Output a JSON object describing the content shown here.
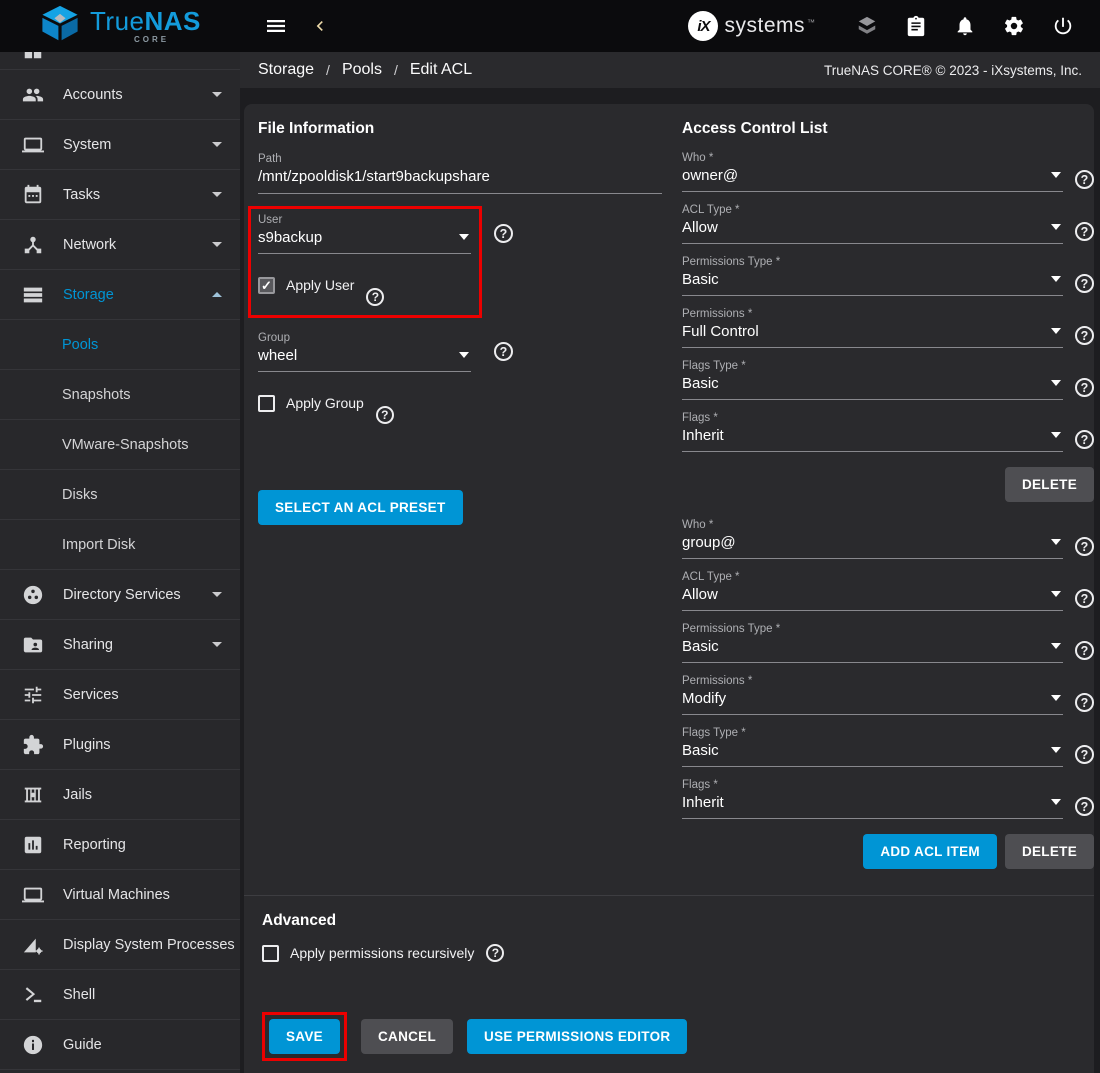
{
  "app": {
    "brand_true": "True",
    "brand_nas": "NAS",
    "brand_core": "CORE",
    "ix_mark": "iX",
    "ix_brand": "systems",
    "ix_tm": "™",
    "copyright": "TrueNAS CORE® © 2023 - iXsystems, Inc."
  },
  "header": {
    "left_icons": [
      "hamburger-icon",
      "collapse-sidenav-icon"
    ],
    "right_icons": [
      "truecommand-icon",
      "tasks-clipboard-icon",
      "notifications-bell-icon",
      "settings-gear-icon",
      "power-icon"
    ]
  },
  "breadcrumb": {
    "items": [
      "Storage",
      "Pools",
      "Edit ACL"
    ],
    "separator": "/"
  },
  "sidebar": [
    {
      "label": "",
      "icon": "dashboard-icon",
      "partial": true
    },
    {
      "label": "Accounts",
      "icon": "accounts-icon",
      "chevron": "down"
    },
    {
      "label": "System",
      "icon": "system-icon",
      "chevron": "down"
    },
    {
      "label": "Tasks",
      "icon": "tasks-icon",
      "chevron": "down"
    },
    {
      "label": "Network",
      "icon": "network-icon",
      "chevron": "down"
    },
    {
      "label": "Storage",
      "icon": "storage-icon",
      "chevron": "up",
      "active": true
    },
    {
      "label": "Pools",
      "sub": true,
      "active": true
    },
    {
      "label": "Snapshots",
      "sub": true
    },
    {
      "label": "VMware-Snapshots",
      "sub": true
    },
    {
      "label": "Disks",
      "sub": true
    },
    {
      "label": "Import Disk",
      "sub": true
    },
    {
      "label": "Directory Services",
      "icon": "directory-services-icon",
      "chevron": "down"
    },
    {
      "label": "Sharing",
      "icon": "sharing-icon",
      "chevron": "down"
    },
    {
      "label": "Services",
      "icon": "services-icon"
    },
    {
      "label": "Plugins",
      "icon": "plugins-icon"
    },
    {
      "label": "Jails",
      "icon": "jails-icon"
    },
    {
      "label": "Reporting",
      "icon": "reporting-icon"
    },
    {
      "label": "Virtual Machines",
      "icon": "vm-icon"
    },
    {
      "label": "Display System Processes",
      "icon": "processes-icon"
    },
    {
      "label": "Shell",
      "icon": "shell-icon"
    },
    {
      "label": "Guide",
      "icon": "guide-icon"
    }
  ],
  "file_info": {
    "title": "File Information",
    "path": {
      "label": "Path",
      "value": "/mnt/zpooldisk1/start9backupshare"
    },
    "user": {
      "label": "User",
      "value": "s9backup",
      "highlighted": true,
      "checkbox": {
        "label": "Apply User",
        "checked": true
      }
    },
    "group": {
      "label": "Group",
      "value": "wheel",
      "highlighted": false,
      "checkbox": {
        "label": "Apply Group",
        "checked": false
      }
    },
    "preset_button": "SELECT AN ACL PRESET"
  },
  "acl": {
    "title": "Access Control List",
    "entries": [
      {
        "fields": [
          {
            "label": "Who *",
            "value": "owner@"
          },
          {
            "label": "ACL Type *",
            "value": "Allow"
          },
          {
            "label": "Permissions Type *",
            "value": "Basic"
          },
          {
            "label": "Permissions *",
            "value": "Full Control"
          },
          {
            "label": "Flags Type *",
            "value": "Basic"
          },
          {
            "label": "Flags *",
            "value": "Inherit"
          }
        ],
        "buttons": [
          {
            "label": "DELETE",
            "style": "gray"
          }
        ]
      },
      {
        "fields": [
          {
            "label": "Who *",
            "value": "group@"
          },
          {
            "label": "ACL Type *",
            "value": "Allow"
          },
          {
            "label": "Permissions Type *",
            "value": "Basic"
          },
          {
            "label": "Permissions *",
            "value": "Modify"
          },
          {
            "label": "Flags Type *",
            "value": "Basic"
          },
          {
            "label": "Flags *",
            "value": "Inherit"
          }
        ],
        "buttons": [
          {
            "label": "ADD ACL ITEM",
            "style": "blue"
          },
          {
            "label": "DELETE",
            "style": "gray"
          }
        ]
      }
    ]
  },
  "advanced": {
    "title": "Advanced",
    "checkbox": {
      "label": "Apply permissions recursively",
      "checked": false
    }
  },
  "actions": [
    {
      "label": "SAVE",
      "style": "blue",
      "highlighted": true
    },
    {
      "label": "CANCEL",
      "style": "gray",
      "highlighted": false
    },
    {
      "label": "USE PERMISSIONS EDITOR",
      "style": "blue",
      "highlighted": false
    }
  ],
  "colors": {
    "accent": "#0095d5",
    "annotation_red": "#ec0000",
    "gray_button": "#4e4e52"
  }
}
